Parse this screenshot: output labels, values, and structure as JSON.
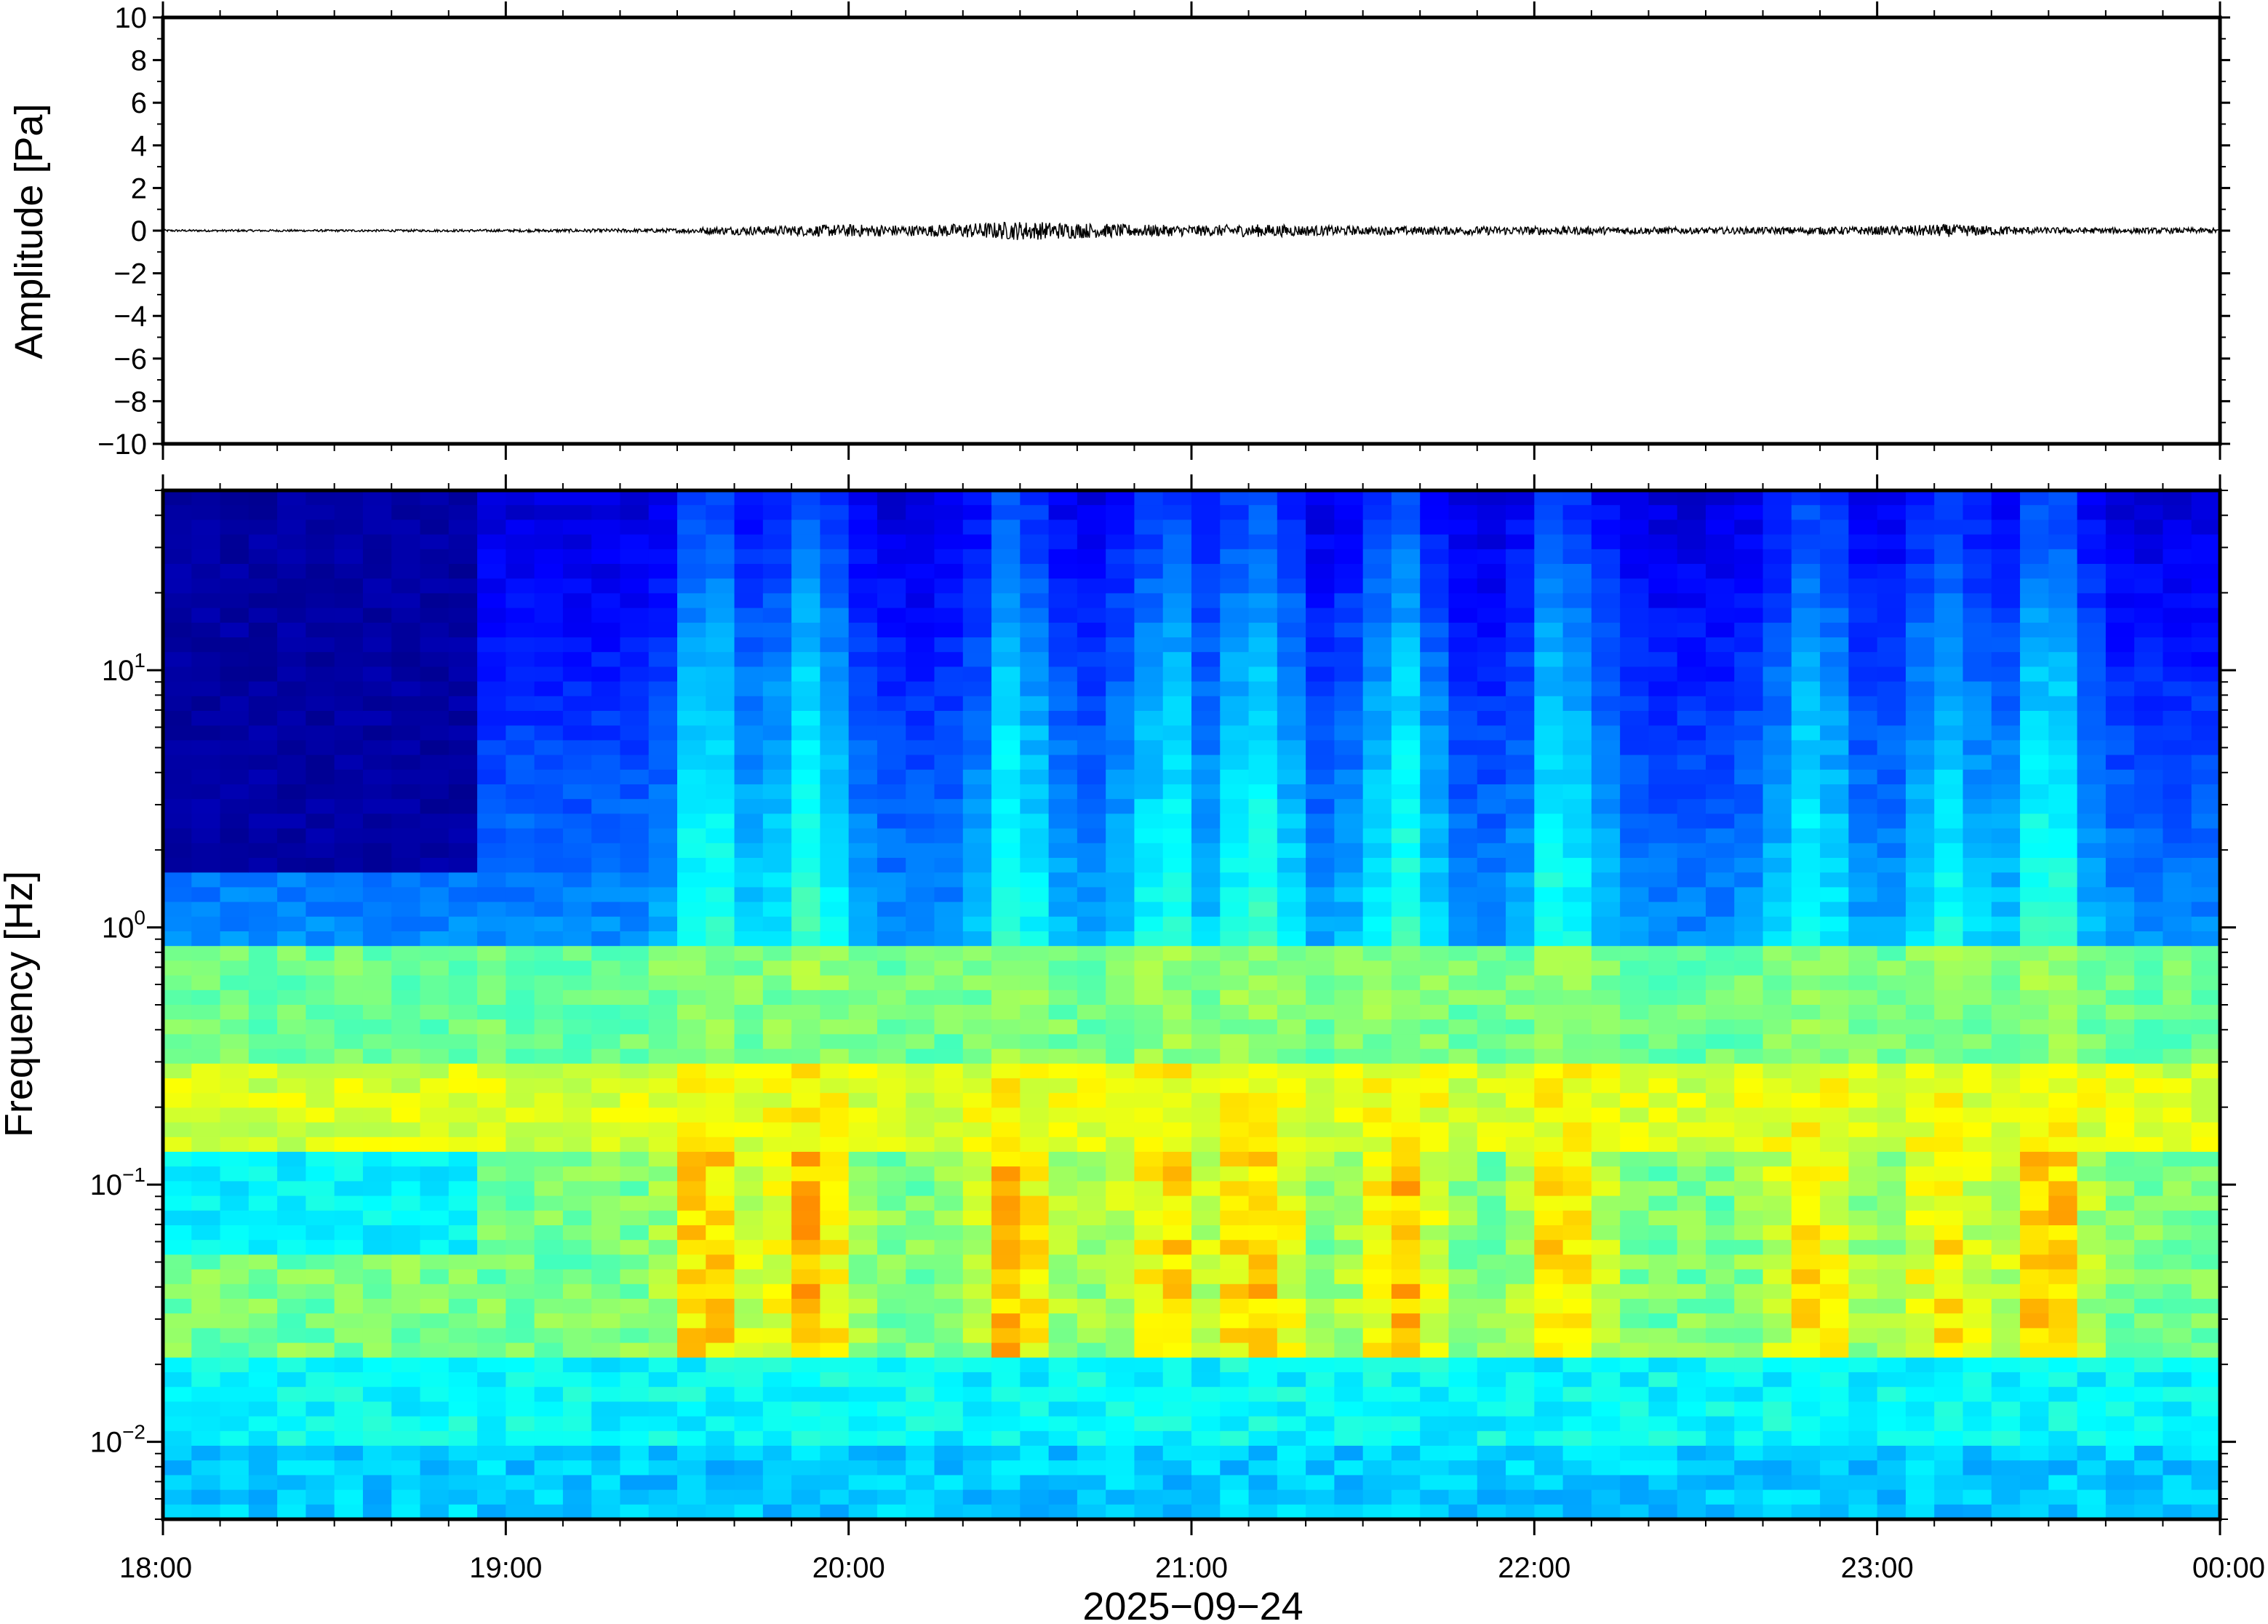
{
  "chart_data": [
    {
      "type": "line",
      "panel": "waveform",
      "title": "",
      "xlabel": "",
      "ylabel": "Amplitude [Pa]",
      "ylim": [
        -10,
        10
      ],
      "yticks": [
        10,
        8,
        6,
        4,
        2,
        0,
        -2,
        -4,
        -6,
        -8,
        -10
      ],
      "ytick_labels": [
        "10",
        "8",
        "6",
        "4",
        "2",
        "0",
        "−2",
        "−4",
        "−6",
        "−8",
        "−10"
      ],
      "xlim": [
        "18:00",
        "24:00"
      ],
      "series": [
        {
          "color": "#000000",
          "x_hours": [
            18.0,
            18.5,
            19.0,
            19.5,
            19.6,
            19.8,
            20.0,
            20.2,
            20.5,
            20.8,
            21.0,
            21.2,
            21.5,
            22.0,
            22.5,
            23.0,
            23.2,
            23.5,
            24.0
          ],
          "envelope_pa": [
            0.05,
            0.05,
            0.06,
            0.1,
            0.18,
            0.22,
            0.3,
            0.25,
            0.45,
            0.3,
            0.25,
            0.3,
            0.2,
            0.2,
            0.15,
            0.2,
            0.3,
            0.15,
            0.12
          ]
        }
      ]
    },
    {
      "type": "heatmap",
      "panel": "spectrogram",
      "title": "",
      "xlabel": "2025−09−24",
      "ylabel": "Frequency [Hz]",
      "yscale": "log",
      "ylim": [
        0.005,
        50
      ],
      "yticks": [
        {
          "base": "10",
          "exp": "1"
        },
        {
          "base": "10",
          "exp": "0"
        },
        {
          "base": "10",
          "exp": "−1"
        },
        {
          "base": "10",
          "exp": "−2"
        }
      ],
      "xticks": [
        "18:00",
        "19:00",
        "20:00",
        "21:00",
        "22:00",
        "23:00",
        "00:00"
      ],
      "colormap": "jet",
      "colors": [
        "#00007f",
        "#0000ff",
        "#007fff",
        "#00ffff",
        "#7fff7f",
        "#ffff00",
        "#ff7f00",
        "#ff0000"
      ],
      "band_note_hz": {
        "microbarom_peak": 0.2
      },
      "activity_hours": [
        19.6,
        19.9,
        20.5,
        20.9,
        21.2,
        21.6,
        22.1,
        22.8,
        23.2,
        23.5
      ]
    }
  ]
}
